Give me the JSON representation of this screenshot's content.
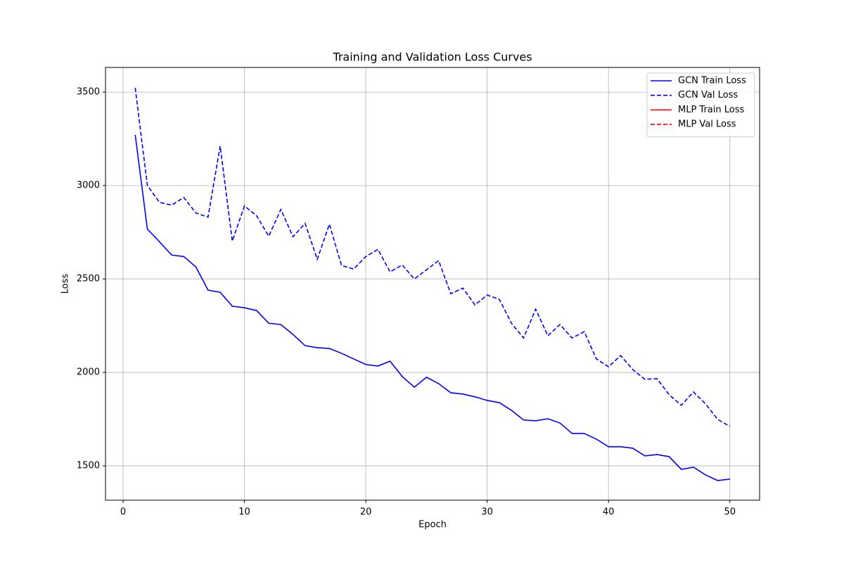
{
  "chart_data": {
    "type": "line",
    "title": "Training and Validation Loss Curves",
    "x_label": "Epoch",
    "y_label": "Loss",
    "x": [
      1,
      2,
      3,
      4,
      5,
      6,
      7,
      8,
      9,
      10,
      11,
      12,
      13,
      14,
      15,
      16,
      17,
      18,
      19,
      20,
      21,
      22,
      23,
      24,
      25,
      26,
      27,
      28,
      29,
      30,
      31,
      32,
      33,
      34,
      35,
      36,
      37,
      38,
      39,
      40,
      41,
      42,
      43,
      44,
      45,
      46,
      47,
      48,
      49,
      50
    ],
    "series": [
      {
        "name": "GCN Train Loss",
        "color": "#0000ff",
        "linestyle": "solid",
        "values": [
          3271,
          2767,
          2699,
          2628,
          2620,
          2564,
          2440,
          2429,
          2354,
          2346,
          2331,
          2263,
          2256,
          2203,
          2143,
          2132,
          2128,
          2102,
          2072,
          2042,
          2034,
          2060,
          1978,
          1921,
          1974,
          1940,
          1891,
          1884,
          1869,
          1850,
          1838,
          1797,
          1745,
          1741,
          1752,
          1729,
          1673,
          1673,
          1643,
          1602,
          1602,
          1594,
          1553,
          1560,
          1549,
          1481,
          1493,
          1451,
          1421,
          1429
        ]
      },
      {
        "name": "GCN Val Loss",
        "color": "#0000ff",
        "linestyle": "dashed",
        "values": [
          3523,
          3000,
          2910,
          2895,
          2936,
          2853,
          2831,
          3211,
          2703,
          2891,
          2838,
          2729,
          2872,
          2726,
          2797,
          2605,
          2793,
          2572,
          2553,
          2620,
          2658,
          2538,
          2575,
          2500,
          2549,
          2598,
          2421,
          2451,
          2361,
          2414,
          2391,
          2263,
          2184,
          2338,
          2196,
          2256,
          2184,
          2218,
          2072,
          2030,
          2090,
          2015,
          1963,
          1966,
          1880,
          1824,
          1895,
          1831,
          1748,
          1711
        ]
      },
      {
        "name": "MLP Train Loss",
        "color": "#ff0000",
        "linestyle": "solid",
        "values": [
          null,
          null,
          null,
          null,
          null,
          null,
          null,
          null,
          null,
          null,
          null,
          null,
          null,
          null,
          null,
          null,
          null,
          null,
          null,
          null,
          null,
          null,
          null,
          null,
          null,
          null,
          null,
          null,
          null,
          null,
          null,
          null,
          null,
          null,
          null,
          null,
          null,
          null,
          null,
          null,
          null,
          null,
          null,
          null,
          null,
          null,
          null,
          null,
          null,
          null
        ]
      },
      {
        "name": "MLP Val Loss",
        "color": "#ff0000",
        "linestyle": "dashed",
        "values": [
          null,
          null,
          null,
          null,
          null,
          null,
          null,
          null,
          null,
          null,
          null,
          null,
          null,
          null,
          null,
          null,
          null,
          null,
          null,
          null,
          null,
          null,
          null,
          null,
          null,
          null,
          null,
          null,
          null,
          null,
          null,
          null,
          null,
          null,
          null,
          null,
          null,
          null,
          null,
          null,
          null,
          null,
          null,
          null,
          null,
          null,
          null,
          null,
          null,
          null
        ]
      }
    ],
    "xlim": [
      -1.45,
      52.45
    ],
    "ylim": [
      1316,
      3632
    ],
    "xticks": [
      0,
      10,
      20,
      30,
      40,
      50
    ],
    "yticks": [
      1500,
      2000,
      2500,
      3000,
      3500
    ],
    "grid": true,
    "legend": "upper right"
  }
}
